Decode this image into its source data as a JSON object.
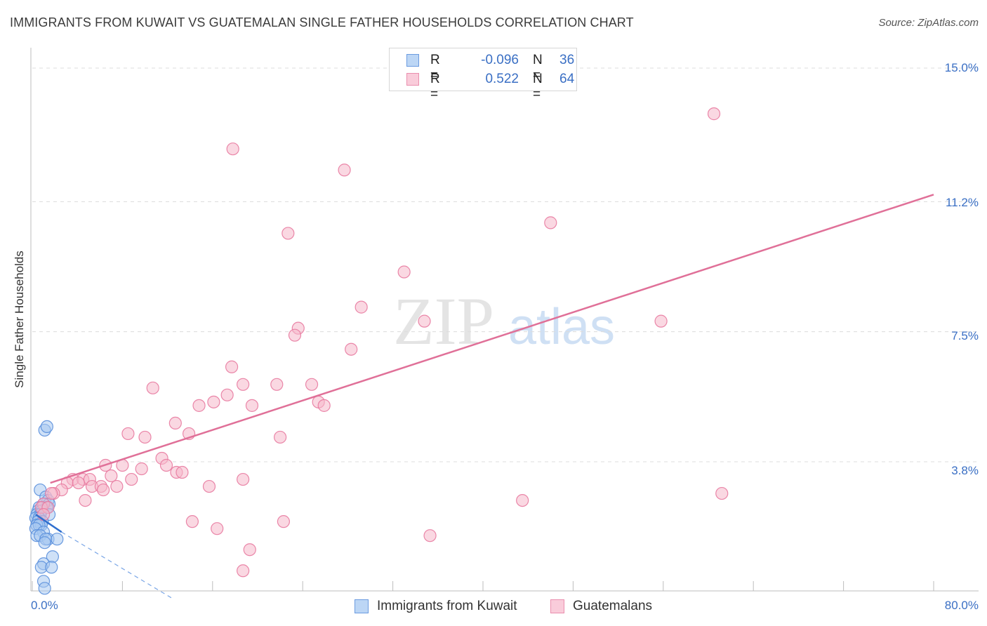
{
  "title": "IMMIGRANTS FROM KUWAIT VS GUATEMALAN SINGLE FATHER HOUSEHOLDS CORRELATION CHART",
  "source": "Source: ZipAtlas.com",
  "watermark": {
    "zip": "ZIP",
    "atlas": "atlas"
  },
  "stats": {
    "r_label": "R =",
    "n_label": "N =",
    "rows": [
      {
        "r": "-0.096",
        "n": "36",
        "color": "#a8c8f0"
      },
      {
        "r": "0.522",
        "n": "64",
        "color": "#f5b8cb"
      }
    ]
  },
  "chart_data": {
    "type": "scatter",
    "title": "IMMIGRANTS FROM KUWAIT VS GUATEMALAN SINGLE FATHER HOUSEHOLDS CORRELATION CHART",
    "xlabel": "",
    "ylabel": "Single Father Households",
    "xlim": [
      0,
      80
    ],
    "ylim": [
      0,
      15.5
    ],
    "x_tick_labels": [
      "0.0%",
      "80.0%"
    ],
    "y_ticks": [
      3.8,
      7.5,
      11.2,
      15.0
    ],
    "y_tick_labels": [
      "3.8%",
      "7.5%",
      "11.2%",
      "15.0%"
    ],
    "grid": true,
    "legend_position": "bottom-center",
    "series": [
      {
        "name": "Immigrants from Kuwait",
        "color": "#5a8fdc",
        "fill": "#a8c8f0",
        "points": [
          [
            1.1,
            4.7
          ],
          [
            1.3,
            4.8
          ],
          [
            0.7,
            3.0
          ],
          [
            1.2,
            2.8
          ],
          [
            1.4,
            2.7
          ],
          [
            1.0,
            2.6
          ],
          [
            1.5,
            2.6
          ],
          [
            0.9,
            2.5
          ],
          [
            0.6,
            2.5
          ],
          [
            1.3,
            2.5
          ],
          [
            0.5,
            2.4
          ],
          [
            0.8,
            2.4
          ],
          [
            1.5,
            2.3
          ],
          [
            0.4,
            2.3
          ],
          [
            0.7,
            2.3
          ],
          [
            0.3,
            2.2
          ],
          [
            0.6,
            2.2
          ],
          [
            0.9,
            2.1
          ],
          [
            0.5,
            2.1
          ],
          [
            0.8,
            2.0
          ],
          [
            0.4,
            2.0
          ],
          [
            0.6,
            2.0
          ],
          [
            0.3,
            1.9
          ],
          [
            1.0,
            1.8
          ],
          [
            0.4,
            1.7
          ],
          [
            0.7,
            1.7
          ],
          [
            1.4,
            1.6
          ],
          [
            1.2,
            1.6
          ],
          [
            2.2,
            1.6
          ],
          [
            1.1,
            1.5
          ],
          [
            1.8,
            1.1
          ],
          [
            1.0,
            0.9
          ],
          [
            0.8,
            0.8
          ],
          [
            1.7,
            0.8
          ],
          [
            1.0,
            0.4
          ],
          [
            1.1,
            0.2
          ]
        ]
      },
      {
        "name": "Guatemalans",
        "color": "#e87aa0",
        "fill": "#f5b8cb",
        "points": [
          [
            60.5,
            13.7
          ],
          [
            17.8,
            12.7
          ],
          [
            27.7,
            12.1
          ],
          [
            46.0,
            10.6
          ],
          [
            22.7,
            10.3
          ],
          [
            33.0,
            9.2
          ],
          [
            29.2,
            8.2
          ],
          [
            34.8,
            7.8
          ],
          [
            55.8,
            7.8
          ],
          [
            23.6,
            7.6
          ],
          [
            23.3,
            7.4
          ],
          [
            28.3,
            7.0
          ],
          [
            17.7,
            6.5
          ],
          [
            18.7,
            6.0
          ],
          [
            21.7,
            6.0
          ],
          [
            24.8,
            6.0
          ],
          [
            10.7,
            5.9
          ],
          [
            17.3,
            5.7
          ],
          [
            16.1,
            5.5
          ],
          [
            19.5,
            5.4
          ],
          [
            14.8,
            5.4
          ],
          [
            25.4,
            5.5
          ],
          [
            25.9,
            5.4
          ],
          [
            12.7,
            4.9
          ],
          [
            13.9,
            4.6
          ],
          [
            8.5,
            4.6
          ],
          [
            10.0,
            4.5
          ],
          [
            22.0,
            4.5
          ],
          [
            11.5,
            3.9
          ],
          [
            6.5,
            3.7
          ],
          [
            8.0,
            3.7
          ],
          [
            9.7,
            3.6
          ],
          [
            11.9,
            3.7
          ],
          [
            12.8,
            3.5
          ],
          [
            13.3,
            3.5
          ],
          [
            7.0,
            3.4
          ],
          [
            18.7,
            3.3
          ],
          [
            8.8,
            3.3
          ],
          [
            3.6,
            3.3
          ],
          [
            4.5,
            3.3
          ],
          [
            5.1,
            3.3
          ],
          [
            3.1,
            3.2
          ],
          [
            4.1,
            3.2
          ],
          [
            5.3,
            3.1
          ],
          [
            6.1,
            3.1
          ],
          [
            7.5,
            3.1
          ],
          [
            15.7,
            3.1
          ],
          [
            6.3,
            3.0
          ],
          [
            2.6,
            3.0
          ],
          [
            1.9,
            2.9
          ],
          [
            1.0,
            2.6
          ],
          [
            4.7,
            2.7
          ],
          [
            43.5,
            2.7
          ],
          [
            61.2,
            2.9
          ],
          [
            0.8,
            2.5
          ],
          [
            1.4,
            2.5
          ],
          [
            1.0,
            2.3
          ],
          [
            14.2,
            2.1
          ],
          [
            22.3,
            2.1
          ],
          [
            16.4,
            1.9
          ],
          [
            35.3,
            1.7
          ],
          [
            19.3,
            1.3
          ],
          [
            18.7,
            0.7
          ],
          [
            1.7,
            2.9
          ]
        ]
      }
    ],
    "trend_lines": [
      {
        "series": "Immigrants from Kuwait",
        "x": [
          0.3,
          2.6
        ],
        "y": [
          2.3,
          1.8
        ],
        "extension_x": [
          2.6,
          12.5
        ],
        "extension_y": [
          1.8,
          -0.1
        ]
      },
      {
        "series": "Guatemalans",
        "x": [
          1.6,
          80.0
        ],
        "y": [
          3.2,
          11.4
        ]
      }
    ]
  }
}
